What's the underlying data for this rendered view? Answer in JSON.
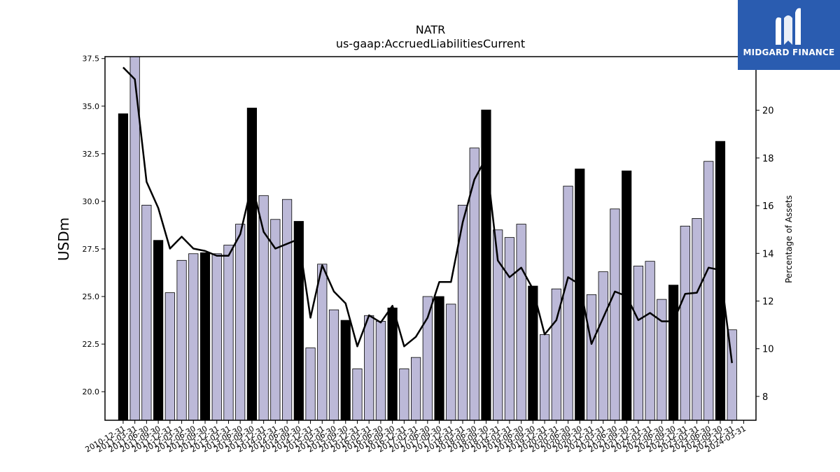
{
  "brand": {
    "name": "MIDGARD FINANCE",
    "bg_color": "#2a5cb0"
  },
  "chart_data": {
    "type": "bar",
    "title": "NATR",
    "subtitle": "us-gaap:AccruedLiabilitiesCurrent",
    "ylabel": "USDm",
    "y2label": "Percentage of Assets",
    "ylim": [
      18.5,
      37.6
    ],
    "y2lim": [
      7.0,
      22.25
    ],
    "yticks": [
      "20.0",
      "22.5",
      "25.0",
      "27.5",
      "30.0",
      "32.5",
      "35.0",
      "37.5"
    ],
    "y2ticks": [
      "8",
      "10",
      "12",
      "14",
      "16",
      "18",
      "20"
    ],
    "colors": {
      "fiscal_year_end_bar": "#000000",
      "quarter_bar": "#bcb9d8",
      "line": "#000000"
    },
    "categories": [
      "2010-12-31",
      "2011-03-31",
      "2011-06-30",
      "2011-09-30",
      "2011-12-31",
      "2012-03-31",
      "2012-06-30",
      "2012-09-30",
      "2012-12-31",
      "2013-03-31",
      "2013-06-30",
      "2013-09-30",
      "2013-12-31",
      "2014-03-31",
      "2014-06-30",
      "2014-09-30",
      "2014-12-31",
      "2015-03-31",
      "2015-06-30",
      "2015-09-30",
      "2015-12-31",
      "2016-03-31",
      "2016-06-30",
      "2016-09-30",
      "2016-12-31",
      "2017-03-31",
      "2017-06-30",
      "2017-09-30",
      "2017-12-31",
      "2018-03-31",
      "2018-06-30",
      "2018-09-30",
      "2018-12-31",
      "2019-03-31",
      "2019-06-30",
      "2019-09-30",
      "2019-12-31",
      "2020-03-31",
      "2020-06-30",
      "2020-09-30",
      "2020-12-31",
      "2021-03-31",
      "2021-06-30",
      "2021-09-30",
      "2021-12-31",
      "2022-03-31",
      "2022-06-30",
      "2022-09-30",
      "2022-12-31",
      "2023-03-31",
      "2023-06-30",
      "2023-09-30",
      "2023-12-31",
      "2024-03-31"
    ],
    "fiscal_year_end": [
      true,
      false,
      false,
      true,
      false,
      false,
      false,
      true,
      false,
      false,
      false,
      true,
      false,
      false,
      false,
      true,
      false,
      false,
      false,
      true,
      false,
      false,
      false,
      true,
      false,
      false,
      false,
      true,
      false,
      false,
      false,
      true,
      false,
      false,
      false,
      true,
      false,
      false,
      false,
      true,
      false,
      false,
      false,
      true,
      false,
      false,
      false,
      true,
      false,
      false,
      false,
      true,
      false,
      false
    ],
    "series": [
      {
        "name": "USDm",
        "kind": "bar",
        "values": [
          34.6,
          37.8,
          29.8,
          27.95,
          25.2,
          26.9,
          27.25,
          27.3,
          27.25,
          27.7,
          28.8,
          34.9,
          30.3,
          29.05,
          30.1,
          28.95,
          22.3,
          26.7,
          24.3,
          23.75,
          21.2,
          24.0,
          23.7,
          24.4,
          21.2,
          21.8,
          25.0,
          25.0,
          24.6,
          29.8,
          32.8,
          34.8,
          28.5,
          28.1,
          28.8,
          25.55,
          23.0,
          25.4,
          30.8,
          31.7,
          25.1,
          26.3,
          29.6,
          31.6,
          26.6,
          26.85,
          24.85,
          25.6,
          28.7,
          29.1,
          32.1,
          33.15,
          23.25,
          null
        ]
      },
      {
        "name": "Percentage of Assets",
        "kind": "line",
        "values": [
          21.8,
          21.3,
          17.0,
          15.9,
          14.2,
          14.7,
          14.2,
          14.1,
          13.9,
          13.9,
          14.8,
          16.9,
          14.9,
          14.2,
          14.4,
          14.6,
          11.3,
          13.5,
          12.4,
          11.9,
          10.1,
          11.4,
          11.1,
          11.8,
          10.1,
          10.5,
          11.3,
          12.8,
          12.8,
          15.3,
          17.1,
          18.0,
          13.7,
          13.0,
          13.4,
          12.5,
          10.6,
          11.2,
          13.0,
          12.7,
          10.2,
          11.3,
          12.4,
          12.2,
          11.2,
          11.5,
          11.15,
          11.15,
          12.3,
          12.35,
          13.4,
          13.3,
          9.4,
          null
        ]
      }
    ],
    "grid": false,
    "legend": "none"
  }
}
